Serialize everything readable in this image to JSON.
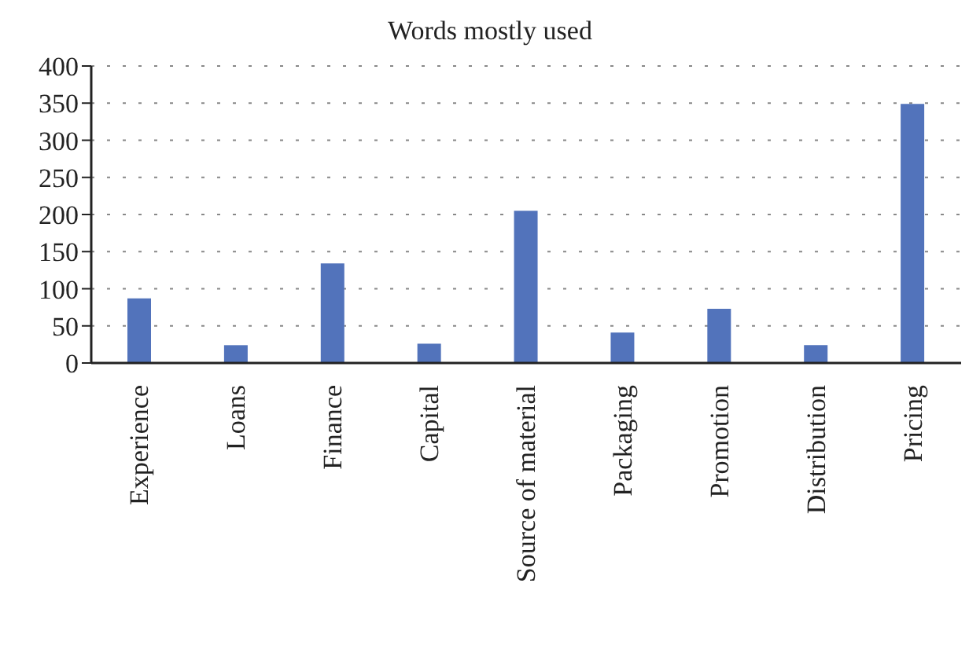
{
  "chart_data": {
    "type": "bar",
    "title": "Words  mostly used",
    "categories": [
      "Experience",
      "Loans",
      "Finance",
      "Capital",
      "Source of material",
      "Packaging",
      "Promotion",
      "Distribution",
      "Pricing"
    ],
    "values": [
      87,
      24,
      134,
      26,
      205,
      41,
      73,
      24,
      349
    ],
    "color": "#5273bb",
    "ylim": [
      0,
      400
    ],
    "yticks": [
      0,
      50,
      100,
      150,
      200,
      250,
      300,
      350,
      400
    ],
    "grid": "y"
  }
}
